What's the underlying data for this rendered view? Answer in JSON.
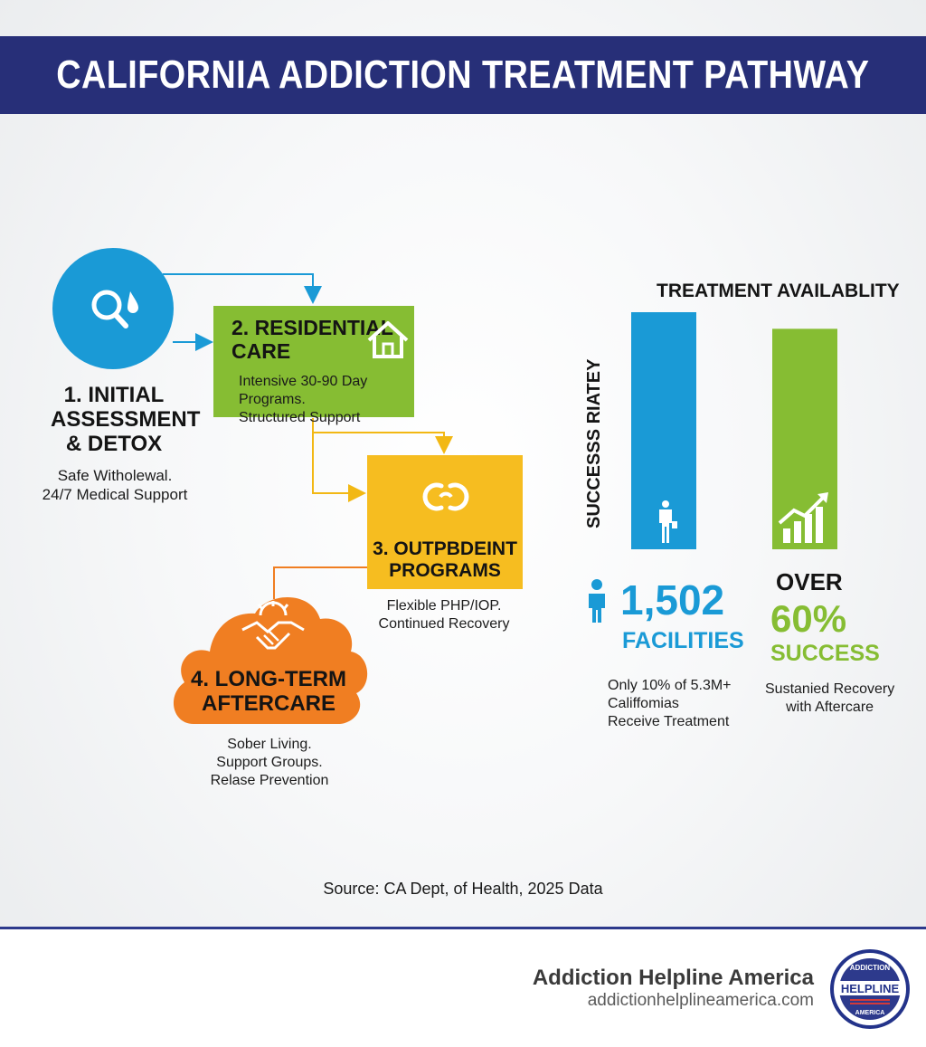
{
  "header": {
    "title": "CALIFORNIA ADDICTION TREATMENT PATHWAY"
  },
  "steps": [
    {
      "title_line1": "1. INITIAL",
      "title_line2": "ASSESSMENT",
      "title_line3": "& DETOX",
      "desc_line1": "Safe Witholewal.",
      "desc_line2": "24/7 Medical Support",
      "icon": "magnifier-drop-icon",
      "color": "#1a9ad6"
    },
    {
      "title_line1": "2. RESIDENTIAL",
      "title_line2": "CARE",
      "desc_line1": "Intensive 30-90 Day Programs.",
      "desc_line2": "Structured Support",
      "icon": "house-icon",
      "color": "#86bd33"
    },
    {
      "title_line1": "3. OUTPBDEINT",
      "title_line2": "PROGRAMS",
      "desc_line1": "Flexible PHP/IOP.",
      "desc_line2": "Continued Recovery",
      "icon": "linked-rings-icon",
      "color": "#f6bd20"
    },
    {
      "title_line1": "4. LONG-TERM",
      "title_line2": "AFTERCARE",
      "desc_line1": "Sober Living.",
      "desc_line2": "Support Groups.",
      "desc_line3": "Relase Prevention",
      "icon": "handshake-sun-icon",
      "color": "#f07e22"
    }
  ],
  "chart_data": {
    "type": "bar",
    "title": "TREATMENT AVAILABLITY",
    "ylabel": "SUCCESSS RIATEY",
    "categories": [
      "1,502 FACILITIES",
      "OVER 60% SUCCESS"
    ],
    "series": [
      {
        "values": [
          1.0,
          0.93
        ]
      }
    ],
    "colors": [
      "#1a9ad6",
      "#86bd33"
    ]
  },
  "stats": {
    "facilities": {
      "number": "1,502",
      "label": "FACILITIES",
      "note_line1": "Only 10% of 5.3M+",
      "note_line2": "Califfomias",
      "note_line3": "Receive Treatment"
    },
    "success": {
      "prefix": "OVER",
      "number": "60%",
      "label": "SUCCESS",
      "note_line1": "Sustanied Recovery",
      "note_line2": "with Aftercare"
    }
  },
  "source": "Source: CA Dept, of Health, 2025 Data",
  "footer": {
    "brand": "Addiction Helpline America",
    "url": "addictionhelplineamerica.com",
    "logo_top": "ADDICTION",
    "logo_mid": "HELPLINE",
    "logo_bottom": "AMERICA"
  }
}
